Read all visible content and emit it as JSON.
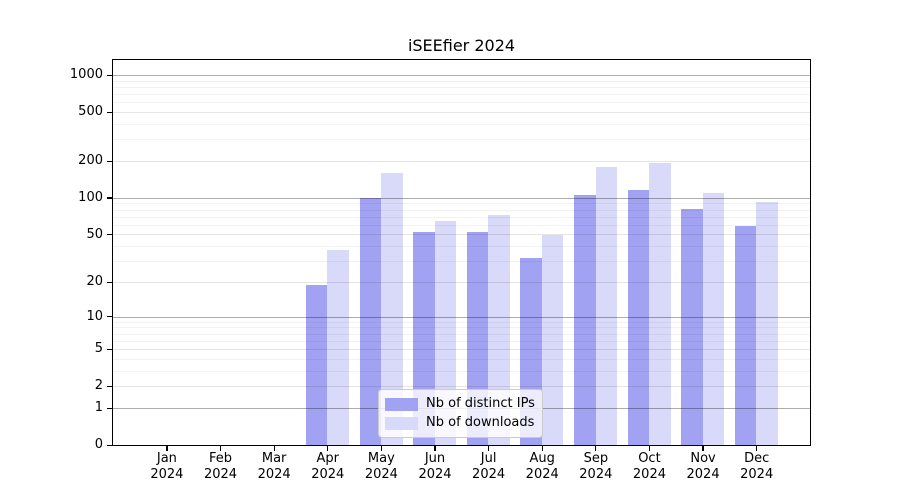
{
  "chart_data": {
    "type": "bar",
    "title": "iSEEfier 2024",
    "categories": [
      "Jan",
      "Feb",
      "Mar",
      "Apr",
      "May",
      "Jun",
      "Jul",
      "Aug",
      "Sep",
      "Oct",
      "Nov",
      "Dec"
    ],
    "category_year": "2024",
    "series": [
      {
        "name": "Nb of distinct IPs",
        "color": "#a2a2f2",
        "values": [
          0,
          0,
          0,
          19,
          100,
          52,
          52,
          32,
          106,
          116,
          81,
          59
        ]
      },
      {
        "name": "Nb of downloads",
        "color": "#d9d9f9",
        "values": [
          0,
          0,
          0,
          37,
          160,
          65,
          72,
          49,
          178,
          192,
          110,
          92
        ]
      }
    ],
    "yscale": "log1p",
    "ylim": [
      0,
      1320
    ],
    "yticks": [
      0,
      1,
      2,
      5,
      10,
      20,
      50,
      100,
      200,
      500,
      1000
    ],
    "ytick_labels": [
      "0",
      "1",
      "2",
      "5",
      "10",
      "20",
      "50",
      "100",
      "200",
      "500",
      "1000"
    ],
    "minor_ticks": [
      3,
      4,
      6,
      7,
      8,
      9,
      30,
      40,
      60,
      70,
      80,
      90,
      300,
      400,
      600,
      700,
      800,
      900
    ],
    "grid": true,
    "grid_above_bars": true,
    "bar_width_fraction": 0.4,
    "legend": {
      "position": "lower center",
      "items": [
        "Nb of distinct IPs",
        "Nb of downloads"
      ]
    },
    "colors": {
      "spine": "#000000",
      "text": "#000000",
      "major_grid": "rgba(0,0,0,0.32)",
      "mid_grid": "rgba(0,0,0,0.10)",
      "minor_grid": "rgba(0,0,0,0.05)",
      "legend_border": "#cccccc",
      "legend_bg": "rgba(255,255,255,0.8)"
    }
  }
}
